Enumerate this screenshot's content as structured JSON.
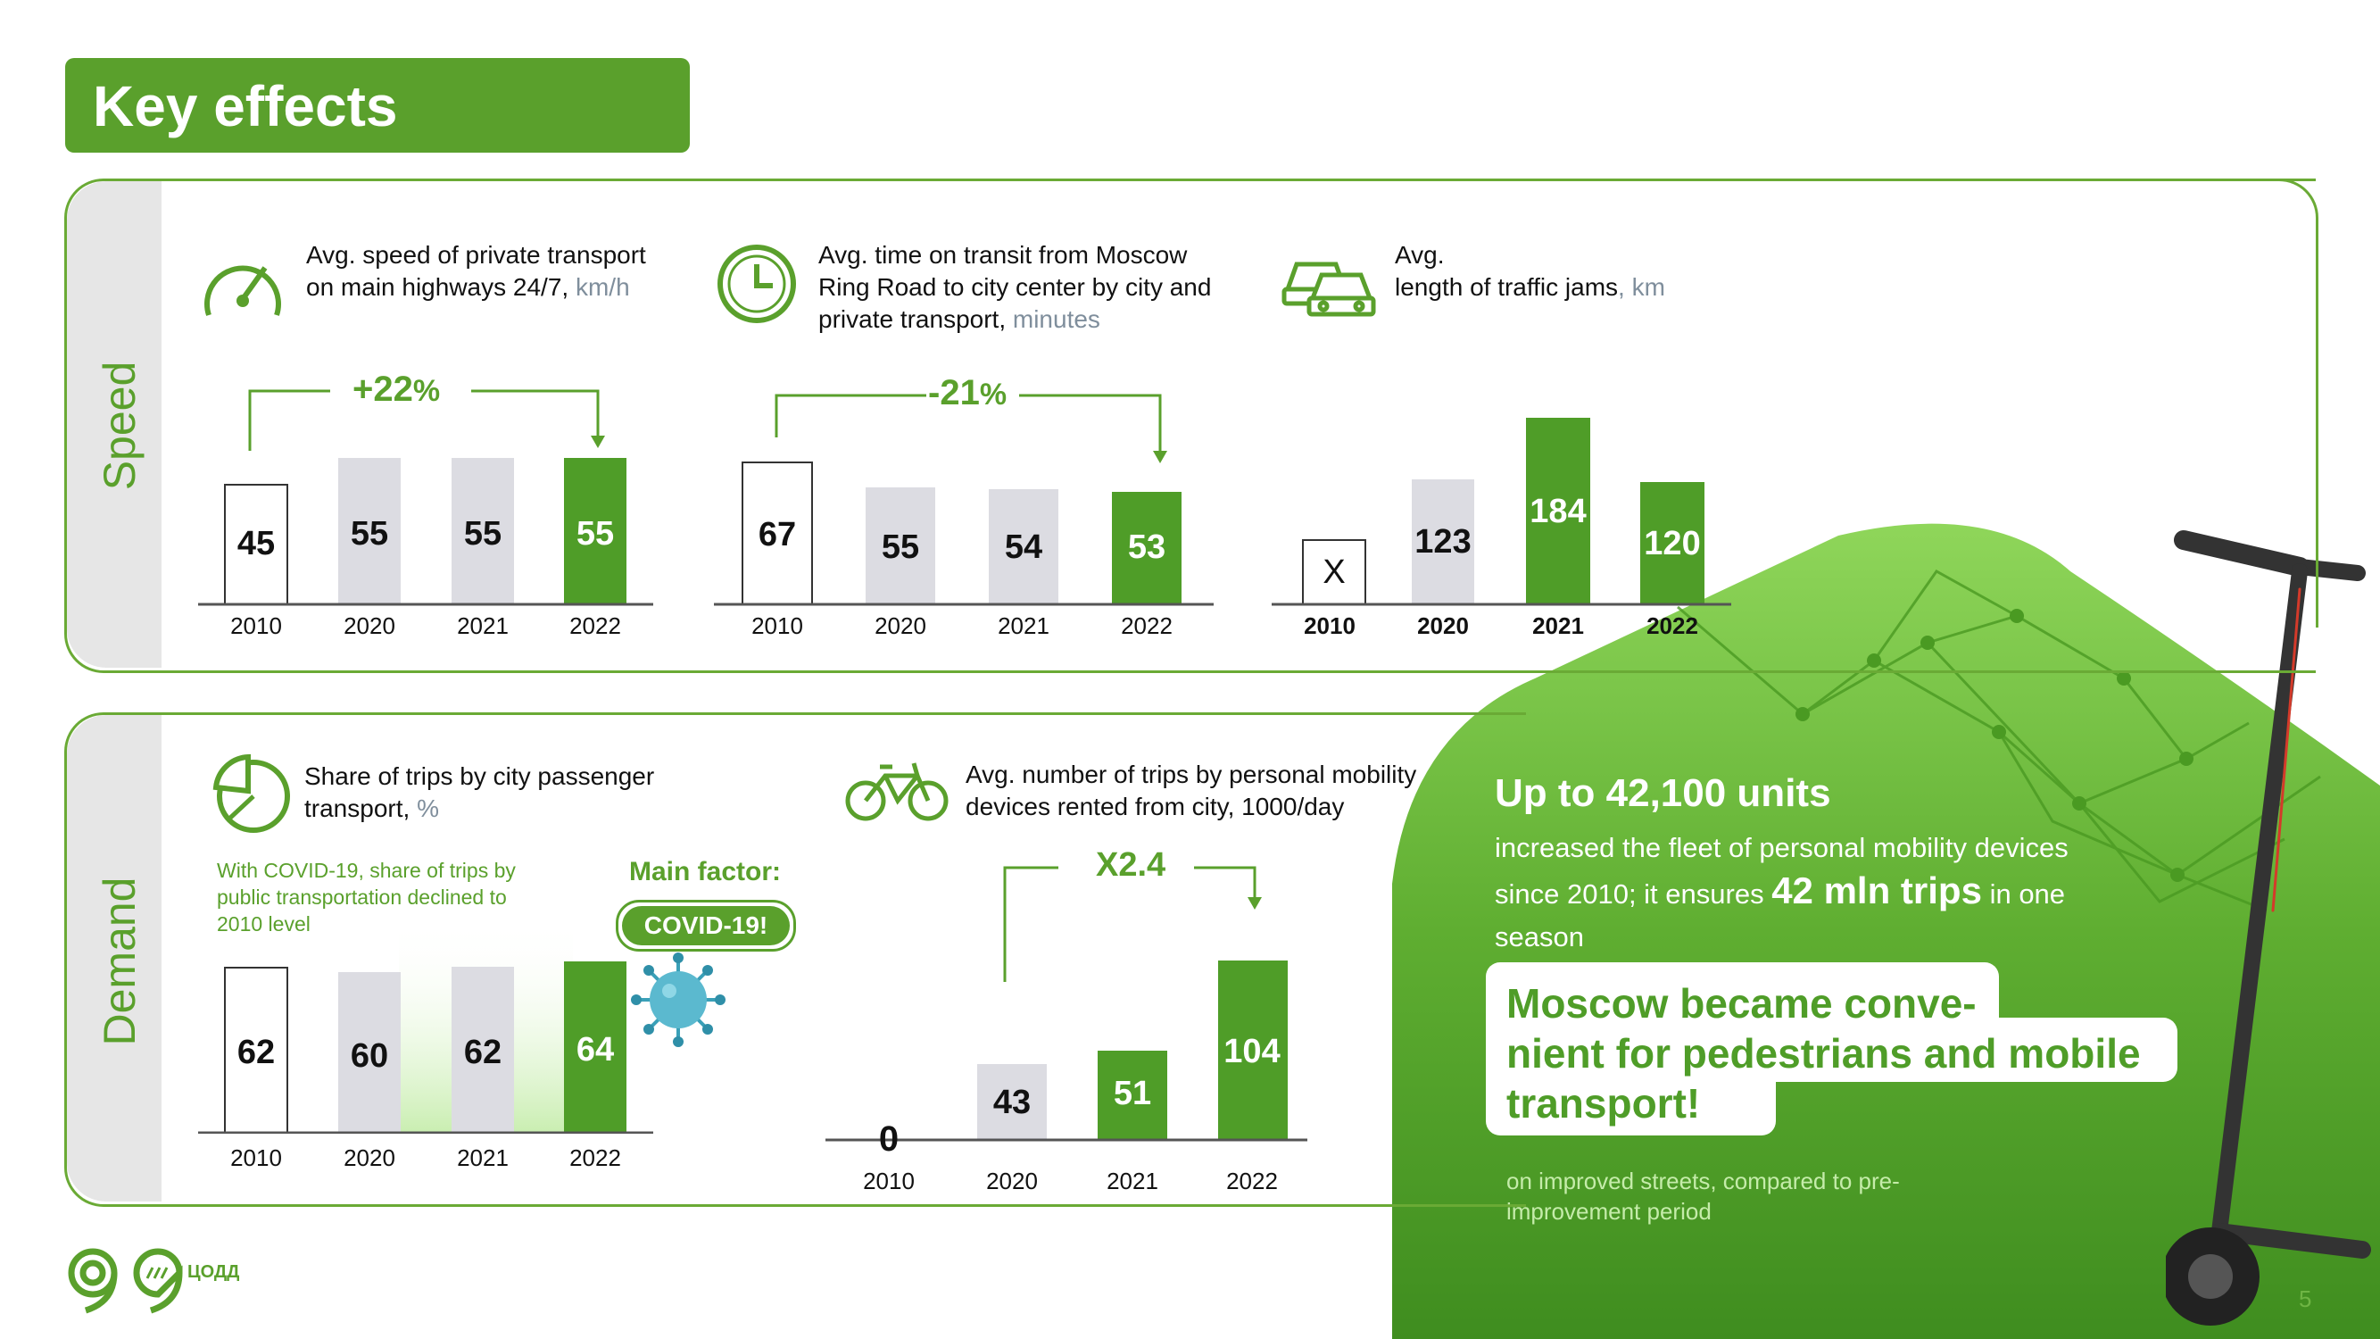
{
  "title": "Key effects",
  "speed": {
    "side_label": "Speed",
    "charts": [
      {
        "caption_lines": [
          "Avg. speed of private transport",
          "on main highways 24/7,"
        ],
        "unit": "km/h",
        "change": "+22",
        "change_pct": "%",
        "categories": [
          "2010",
          "2020",
          "2021",
          "2022"
        ],
        "values": [
          "45",
          "55",
          "55",
          "55"
        ],
        "icon": "speedometer-icon"
      },
      {
        "caption_lines": [
          "Avg. time on transit from Moscow",
          "Ring Road to city center by city and",
          "private transport,"
        ],
        "unit": "minutes",
        "change": "-21",
        "change_pct": "%",
        "categories": [
          "2010",
          "2020",
          "2021",
          "2022"
        ],
        "values": [
          "67",
          "55",
          "54",
          "53"
        ],
        "icon": "clock-icon"
      },
      {
        "caption_lines": [
          "Avg.",
          "length of traffic jams"
        ],
        "unit": ", km",
        "categories": [
          "2010",
          "2020",
          "2021",
          "2022"
        ],
        "values": [
          "X",
          "123",
          "184",
          "120"
        ],
        "icon": "cars-icon"
      }
    ]
  },
  "demand": {
    "side_label": "Demand",
    "charts": [
      {
        "caption_lines": [
          "Share of trips by city passenger",
          "transport,"
        ],
        "unit": "%",
        "note_lines": [
          "With COVID-19, share of trips by",
          "public transportation declined to",
          "2010 level"
        ],
        "main_factor_label": "Main factor:",
        "main_factor_value": "COVID-19!",
        "categories": [
          "2010",
          "2020",
          "2021",
          "2022"
        ],
        "values": [
          "62",
          "60",
          "62",
          "64"
        ],
        "icon": "pie-chart-icon"
      },
      {
        "caption_lines": [
          "Avg. number of trips by personal mobility",
          "devices rented from city, 1000/day"
        ],
        "change": "X2.4",
        "categories": [
          "2010",
          "2020",
          "2021",
          "2022"
        ],
        "values": [
          "0",
          "43",
          "51",
          "104"
        ],
        "icon": "bicycle-icon"
      }
    ]
  },
  "promo": {
    "headline": "Up to 42,100 units",
    "line1": "increased the fleet of personal mobility devices",
    "line2_a": "since 2010; it ensures",
    "line2_big": "42 mln trips",
    "line2_b": "in one",
    "line3": "season",
    "callout_lines": [
      "Moscow became conve-",
      "nient for pedestrians and mobile",
      "transport!"
    ],
    "footnote_lines": [
      "on improved streets, compared to pre-",
      "improvement period"
    ]
  },
  "footer": {
    "logo_text": "ЦОДД",
    "page_number": "5"
  },
  "colors": {
    "brand_green": "#5aa02c",
    "bar_gray": "#dcdce2",
    "bar_green": "#4f9d28",
    "unit_gray": "#7f8e9c"
  }
}
